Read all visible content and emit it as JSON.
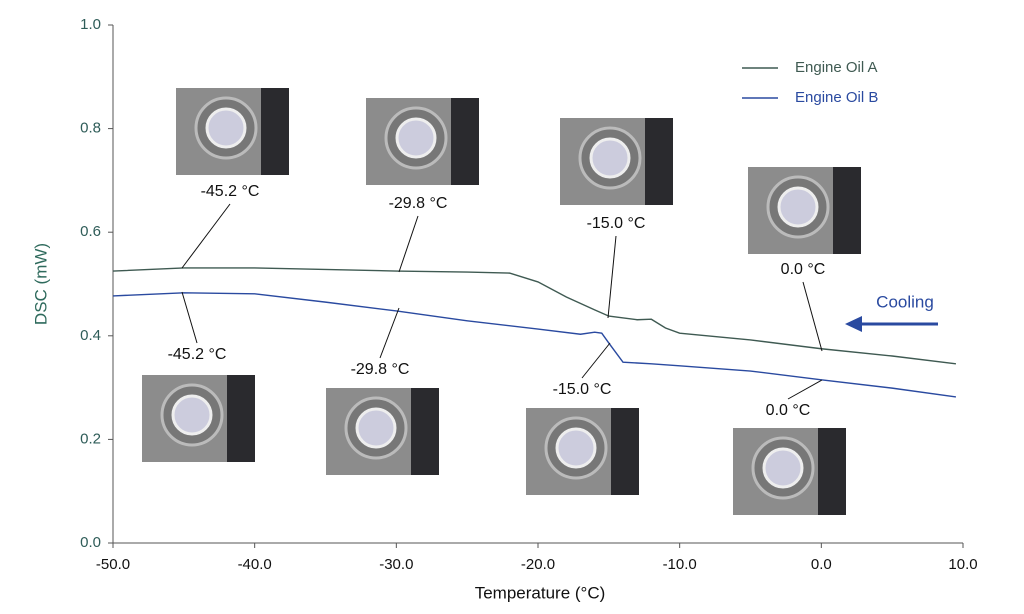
{
  "chart_data": {
    "type": "line",
    "xlabel": "Temperature (°C)",
    "ylabel": "DSC (mW)",
    "xlim": [
      -50,
      10
    ],
    "ylim": [
      0,
      1
    ],
    "xticks": [
      {
        "value": -50,
        "label": "-50.0"
      },
      {
        "value": -40,
        "label": "-40.0"
      },
      {
        "value": -30,
        "label": "-30.0"
      },
      {
        "value": -20,
        "label": "-20.0"
      },
      {
        "value": -10,
        "label": "-10.0"
      },
      {
        "value": 0,
        "label": "0.0"
      },
      {
        "value": 10,
        "label": "10.0"
      }
    ],
    "yticks": [
      {
        "value": 0,
        "label": "0.0"
      },
      0.2,
      0.4,
      0.6,
      0.8,
      {
        "value": 1,
        "label": "1.0"
      }
    ],
    "legend": "upper right",
    "series": [
      {
        "name": "Engine Oil A",
        "color": "#3f5a52",
        "x": [
          -50,
          -45,
          -40,
          -30,
          -25,
          -22,
          -20,
          -18,
          -16,
          -15,
          -13,
          -12,
          -11,
          -10,
          -5,
          0,
          5,
          9.5
        ],
        "values": [
          0.525,
          0.531,
          0.531,
          0.525,
          0.523,
          0.521,
          0.504,
          0.475,
          0.45,
          0.438,
          0.431,
          0.432,
          0.415,
          0.405,
          0.392,
          0.375,
          0.361,
          0.346
        ]
      },
      {
        "name": "Engine Oil B",
        "color": "#2a4aa0",
        "x": [
          -50,
          -45,
          -40,
          -35,
          -30,
          -25,
          -20,
          -17,
          -16,
          -15.5,
          -15,
          -14,
          -12,
          -10,
          -5,
          0,
          5,
          9.5
        ],
        "values": [
          0.477,
          0.483,
          0.481,
          0.465,
          0.448,
          0.429,
          0.413,
          0.403,
          0.407,
          0.405,
          0.386,
          0.349,
          0.346,
          0.342,
          0.332,
          0.315,
          0.299,
          0.282
        ]
      }
    ],
    "annotations": [
      "-45.2 °C",
      "-29.8 °C",
      "-15.0 °C",
      "0.0 °C",
      "-45.2 °C",
      "-29.8 °C",
      "-15.0 °C",
      "0.0 °C",
      "Cooling"
    ]
  }
}
